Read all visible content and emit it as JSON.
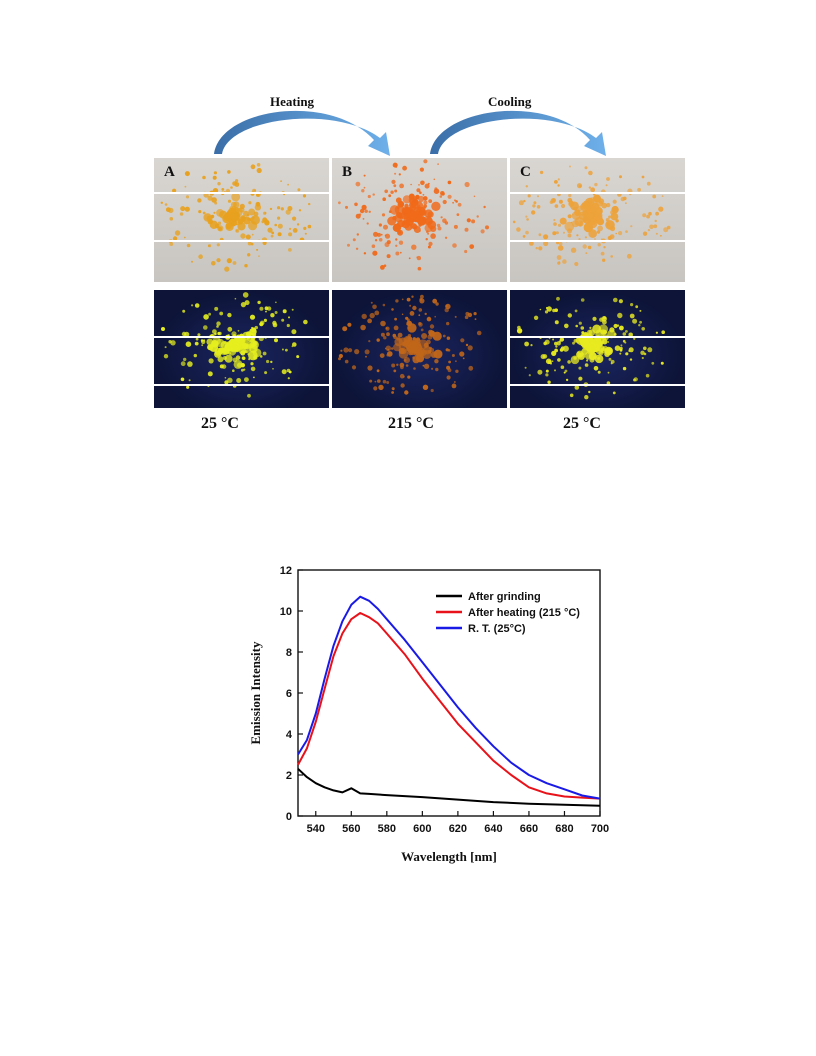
{
  "figure": {
    "process": {
      "heating_label": "Heating",
      "cooling_label": "Cooling",
      "arrow_color": "#4f8fd0"
    },
    "panels": [
      {
        "letter": "A",
        "temperature": "25 °C",
        "powder_color": "#e8a11e",
        "emission_color": "#e6ef1e"
      },
      {
        "letter": "B",
        "temperature": "215 °C",
        "powder_color": "#f06a1a",
        "emission_color": "#c0661a"
      },
      {
        "letter": "C",
        "temperature": "25 °C",
        "powder_color": "#eda23a",
        "emission_color": "#e8ea20"
      }
    ]
  },
  "chart_data": {
    "type": "line",
    "xlabel": "Wavelength [nm]",
    "ylabel": "Emission Intensity",
    "xlim": [
      530,
      700
    ],
    "ylim": [
      0,
      12
    ],
    "xticks": [
      540,
      560,
      580,
      600,
      620,
      640,
      660,
      680,
      700
    ],
    "yticks": [
      0,
      2,
      4,
      6,
      8,
      10,
      12
    ],
    "legend_position": "top-right",
    "grid": false,
    "series": [
      {
        "name": "After grinding",
        "color": "#000000",
        "x": [
          530,
          535,
          540,
          545,
          550,
          555,
          560,
          565,
          570,
          580,
          590,
          600,
          620,
          640,
          660,
          680,
          700
        ],
        "y": [
          2.3,
          1.9,
          1.6,
          1.4,
          1.25,
          1.15,
          1.35,
          1.1,
          1.08,
          1.02,
          0.97,
          0.92,
          0.8,
          0.68,
          0.6,
          0.55,
          0.5
        ]
      },
      {
        "name": "After heating (215 °C)",
        "color": "#e8121a",
        "x": [
          530,
          535,
          540,
          545,
          550,
          555,
          560,
          565,
          570,
          575,
          580,
          590,
          600,
          610,
          620,
          630,
          640,
          650,
          660,
          670,
          680,
          690,
          700
        ],
        "y": [
          2.5,
          3.3,
          4.6,
          6.2,
          7.8,
          8.9,
          9.6,
          9.9,
          9.7,
          9.4,
          8.9,
          7.9,
          6.7,
          5.6,
          4.5,
          3.6,
          2.7,
          2.0,
          1.4,
          1.1,
          0.95,
          0.9,
          0.85
        ]
      },
      {
        "name": "R. T. (25°C)",
        "color": "#1a1ae6",
        "x": [
          530,
          535,
          540,
          545,
          550,
          555,
          560,
          565,
          570,
          575,
          580,
          590,
          600,
          610,
          620,
          630,
          640,
          650,
          660,
          670,
          680,
          690,
          700
        ],
        "y": [
          3.0,
          3.7,
          5.0,
          6.7,
          8.3,
          9.5,
          10.3,
          10.7,
          10.5,
          10.1,
          9.6,
          8.6,
          7.5,
          6.4,
          5.3,
          4.3,
          3.4,
          2.6,
          2.0,
          1.6,
          1.3,
          1.0,
          0.85
        ]
      }
    ]
  }
}
